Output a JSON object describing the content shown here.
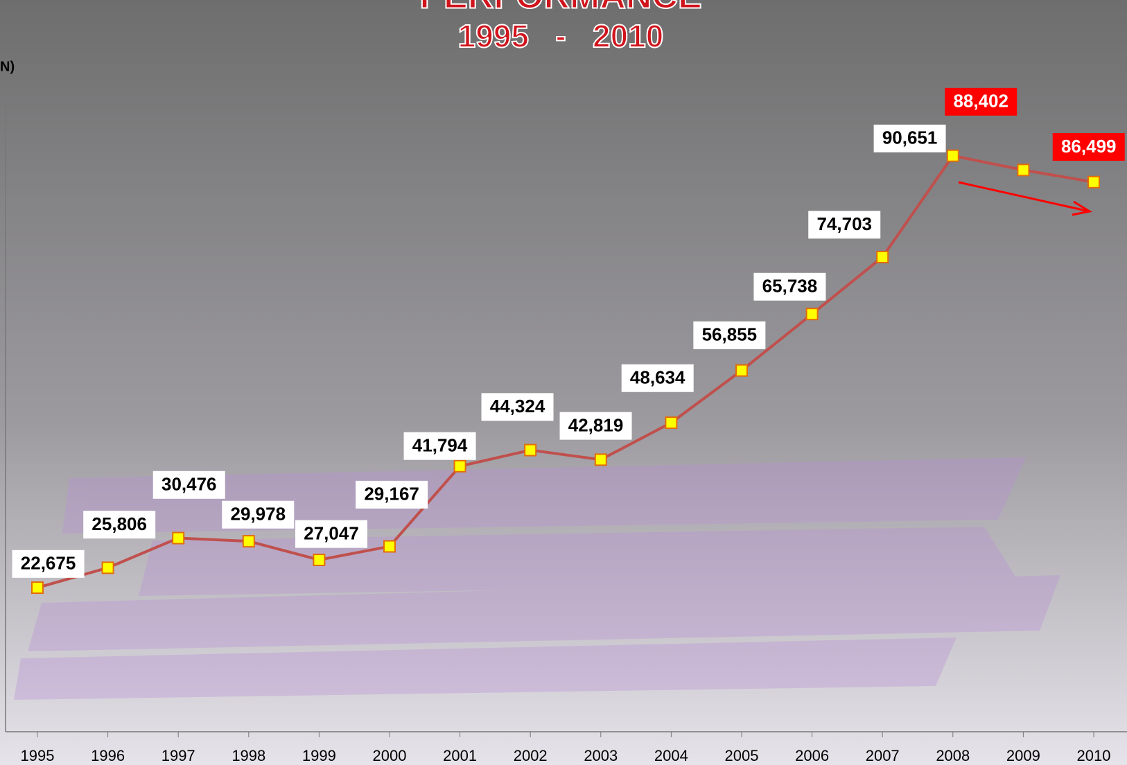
{
  "chart_data": {
    "type": "line",
    "title": "PERFORMANCE",
    "subtitle": "1995   -   2010",
    "y_label": "N)",
    "categories": [
      "1995",
      "1996",
      "1997",
      "1998",
      "1999",
      "2000",
      "2001",
      "2002",
      "2003",
      "2004",
      "2005",
      "2006",
      "2007",
      "2008",
      "2009",
      "2010"
    ],
    "values": [
      22675,
      25806,
      30476,
      29978,
      27047,
      29167,
      41794,
      44324,
      42819,
      48634,
      56855,
      65738,
      74703,
      90651,
      88402,
      86499
    ],
    "value_labels": [
      "22,675",
      "25,806",
      "30,476",
      "29,978",
      "27,047",
      "29,167",
      "41,794",
      "44,324",
      "42,819",
      "48,634",
      "56,855",
      "65,738",
      "74,703",
      "90,651",
      "88,402",
      "86,499"
    ],
    "value_label_colors": [
      "#ffffff",
      "#ffffff",
      "#ffffff",
      "#ffffff",
      "#ffffff",
      "#ffffff",
      "#ffffff",
      "#ffffff",
      "#ffffff",
      "#ffffff",
      "#ffffff",
      "#ffffff",
      "#ffffff",
      "#ffffff",
      "#ff0000",
      "#ff0000"
    ],
    "color": "#c0504d",
    "marker_color": "#ffff00",
    "ylim": [
      0,
      100000
    ]
  }
}
